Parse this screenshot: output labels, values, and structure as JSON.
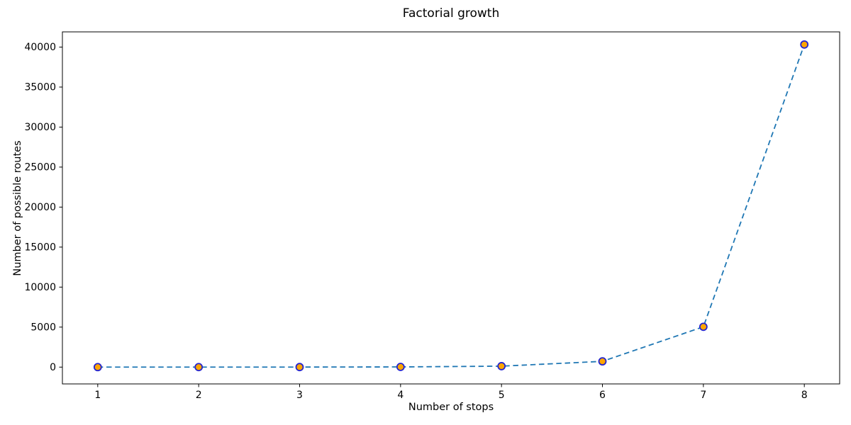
{
  "chart_data": {
    "type": "line",
    "title": "Factorial growth",
    "xlabel": "Number of stops",
    "ylabel": "Number of possible routes",
    "x": [
      1,
      2,
      3,
      4,
      5,
      6,
      7,
      8
    ],
    "y": [
      1,
      2,
      6,
      24,
      120,
      720,
      5040,
      40320
    ],
    "x_ticks": [
      1,
      2,
      3,
      4,
      5,
      6,
      7,
      8
    ],
    "y_ticks": [
      0,
      5000,
      10000,
      15000,
      20000,
      25000,
      30000,
      35000,
      40000
    ],
    "xlim": [
      0.65,
      8.35
    ],
    "ylim": [
      -2100,
      41900
    ],
    "grid": false,
    "legend_position": "none",
    "line_color": "#1f77b4",
    "line_style": "dashed",
    "marker": "circle",
    "marker_face_color": "#ffa500",
    "marker_edge_color": "#2424d0",
    "spine_color": "#000000",
    "text_color": "#000000",
    "background_color": "#ffffff"
  }
}
